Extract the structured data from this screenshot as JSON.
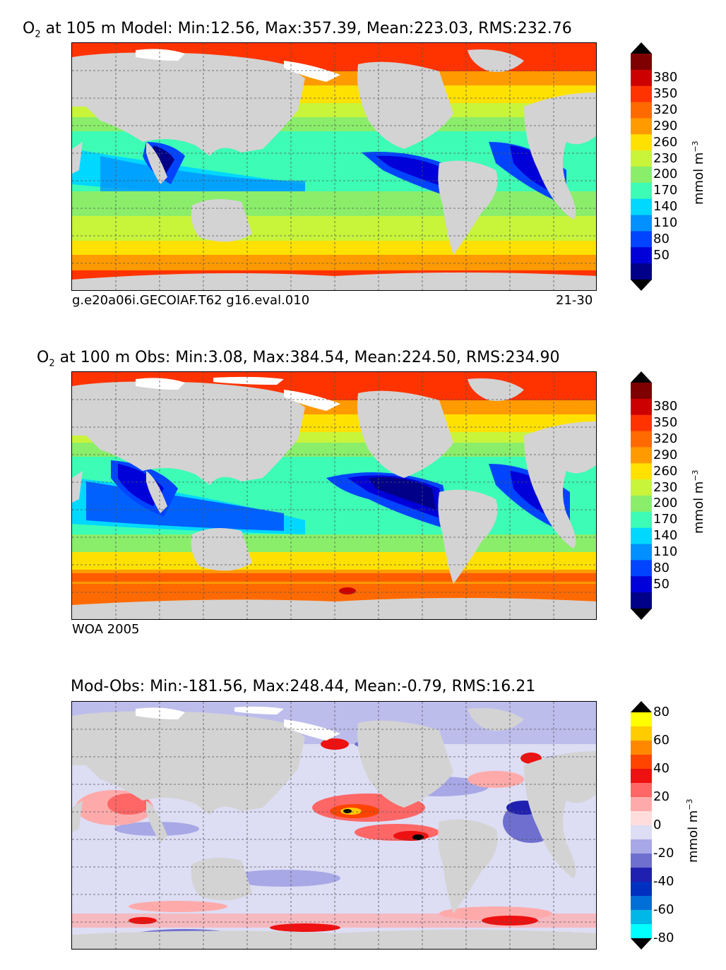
{
  "panels": [
    {
      "id": "model",
      "title_prefix": "O",
      "title_sub": "2",
      "title_rest": " at 105 m Model: Min:12.56, Max:357.39, Mean:223.03, RMS:232.76",
      "caption_left": "g.e20a06i.GECOIAF.T62 g16.eval.010",
      "caption_right": "21-30",
      "colorbar": {
        "ticks": [
          "380",
          "350",
          "320",
          "290",
          "260",
          "230",
          "200",
          "170",
          "140",
          "110",
          "80",
          "50"
        ],
        "unit_base": "mmol m",
        "unit_sup": "−3",
        "colors": [
          "#7f0000",
          "#cc0000",
          "#ff3300",
          "#ff6a00",
          "#ff9a00",
          "#ffe100",
          "#c8f43a",
          "#8aee6a",
          "#3cfcb6",
          "#00d8ff",
          "#0090ff",
          "#0044ff",
          "#0000d8",
          "#000088"
        ],
        "extend_top": "#000000",
        "extend_bottom": "#000000"
      }
    },
    {
      "id": "obs",
      "title_prefix": "O",
      "title_sub": "2",
      "title_rest": " at 100 m Obs: Min:3.08, Max:384.54, Mean:224.50, RMS:234.90",
      "caption_left": "WOA 2005",
      "caption_right": "",
      "colorbar": {
        "ticks": [
          "380",
          "350",
          "320",
          "290",
          "260",
          "230",
          "200",
          "170",
          "140",
          "110",
          "80",
          "50"
        ],
        "unit_base": "mmol m",
        "unit_sup": "−3",
        "colors": [
          "#7f0000",
          "#cc0000",
          "#ff3300",
          "#ff6a00",
          "#ff9a00",
          "#ffe100",
          "#c8f43a",
          "#8aee6a",
          "#3cfcb6",
          "#00d8ff",
          "#0090ff",
          "#0044ff",
          "#0000d8",
          "#000088"
        ],
        "extend_top": "#000000",
        "extend_bottom": "#000000"
      }
    },
    {
      "id": "diff",
      "title_prefix": "Mod-Obs: Min:-181.56, Max:248.44, Mean:-0.79, RMS:16.21",
      "title_sub": "",
      "title_rest": "",
      "caption_left": "",
      "caption_right": "",
      "colorbar": {
        "ticks": [
          "80",
          "60",
          "40",
          "20",
          "0",
          "-20",
          "-40",
          "-60",
          "-80"
        ],
        "unit_base": "mmol m",
        "unit_sup": "−3",
        "colors": [
          "#ffff00",
          "#ffcc00",
          "#ff8800",
          "#ff4400",
          "#ee1111",
          "#ff6666",
          "#ffaaaa",
          "#ffdddd",
          "#ddddf4",
          "#a8a8e6",
          "#6f6fd0",
          "#2020b0",
          "#0030c0",
          "#0070d8",
          "#00b8e8",
          "#00ffff"
        ],
        "extend_top": "#000000",
        "extend_bottom": "#000000"
      }
    }
  ],
  "palette": {
    "land": "#d3d3d3",
    "sea_ice": "#ffffff",
    "grid": "#555555"
  }
}
